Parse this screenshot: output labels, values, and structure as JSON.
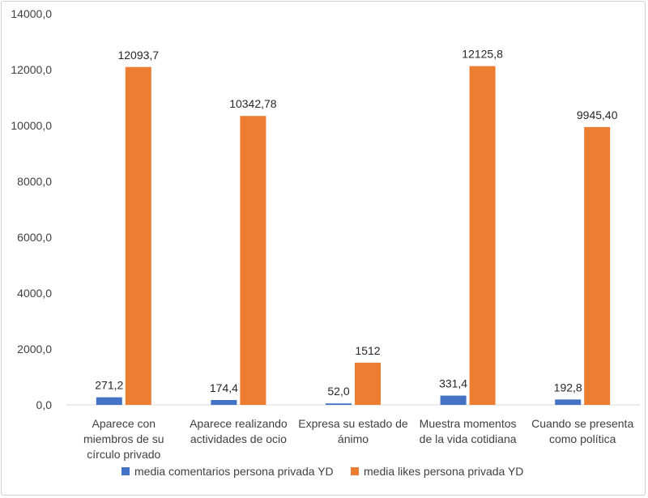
{
  "chart_data": {
    "type": "bar",
    "title": "",
    "xlabel": "",
    "ylabel": "",
    "ylim": [
      0,
      14000
    ],
    "yticks": [
      "0,0",
      "2000,0",
      "4000,0",
      "6000,0",
      "8000,0",
      "10000,0",
      "12000,0",
      "14000,0"
    ],
    "grid": false,
    "legend_position": "bottom",
    "categories": [
      [
        "Aparece con",
        "miembros de su",
        "círculo privado"
      ],
      [
        "Aparece realizando",
        "actividades de ocio"
      ],
      [
        "Expresa su estado de",
        "ánimo"
      ],
      [
        "Muestra momentos",
        "de la vida cotidiana"
      ],
      [
        "Cuando se presenta",
        "como política"
      ]
    ],
    "series": [
      {
        "name": "media comentarios persona privada YD",
        "color": "#4472c4",
        "values": [
          271.2,
          174.4,
          52.0,
          331.4,
          192.8
        ],
        "labels": [
          "271,2",
          "174,4",
          "52,0",
          "331,4",
          "192,8"
        ]
      },
      {
        "name": "media likes persona privada YD",
        "color": "#ed7d31",
        "values": [
          12093.7,
          10342.78,
          1512,
          12125.8,
          9945.4
        ],
        "labels": [
          "12093,7",
          "10342,78",
          "1512",
          "12125,8",
          "9945,40"
        ]
      }
    ]
  }
}
